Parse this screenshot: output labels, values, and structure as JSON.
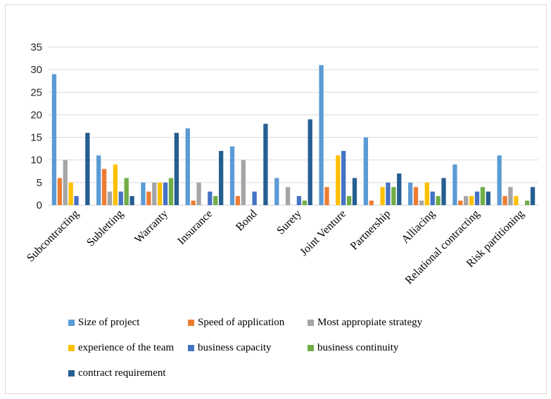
{
  "chart_data": {
    "type": "bar",
    "title": "",
    "xlabel": "",
    "ylabel": "",
    "ylim": [
      0,
      35
    ],
    "yticks": [
      "0",
      "5",
      "10",
      "15",
      "20",
      "25",
      "30",
      "35"
    ],
    "grid": true,
    "legend_position": "bottom",
    "categories": [
      "Subcontracting",
      "Subletting",
      "Warranty",
      "Insurance",
      "Bond",
      "Surety",
      "Joint Venture",
      "Partnership",
      "Alliacing",
      "Relational contracting",
      "Risk partitioning"
    ],
    "series": [
      {
        "name": "Size of project",
        "color": "#5B9BD5",
        "values": [
          29,
          11,
          5,
          17,
          13,
          6,
          31,
          15,
          5,
          9,
          11
        ]
      },
      {
        "name": "Speed of application",
        "color": "#ED7D31",
        "values": [
          6,
          8,
          3,
          1,
          2,
          0,
          4,
          1,
          4,
          1,
          2
        ]
      },
      {
        "name": "Most appropiate strategy",
        "color": "#A5A5A5",
        "values": [
          10,
          3,
          5,
          5,
          10,
          4,
          0,
          0,
          1,
          2,
          4
        ]
      },
      {
        "name": "experience of the team",
        "color": "#FFC000",
        "values": [
          5,
          9,
          5,
          0,
          0,
          0,
          11,
          4,
          5,
          2,
          2
        ]
      },
      {
        "name": "business capacity",
        "color": "#4472C4",
        "values": [
          2,
          3,
          5,
          3,
          3,
          2,
          12,
          5,
          3,
          3,
          0
        ]
      },
      {
        "name": "business continuity",
        "color": "#70AD47",
        "values": [
          0,
          6,
          6,
          2,
          0,
          1,
          2,
          4,
          2,
          4,
          1
        ]
      },
      {
        "name": "contract requirement",
        "color": "#255E91",
        "values": [
          16,
          2,
          16,
          12,
          18,
          19,
          6,
          7,
          6,
          3,
          4
        ]
      }
    ]
  }
}
